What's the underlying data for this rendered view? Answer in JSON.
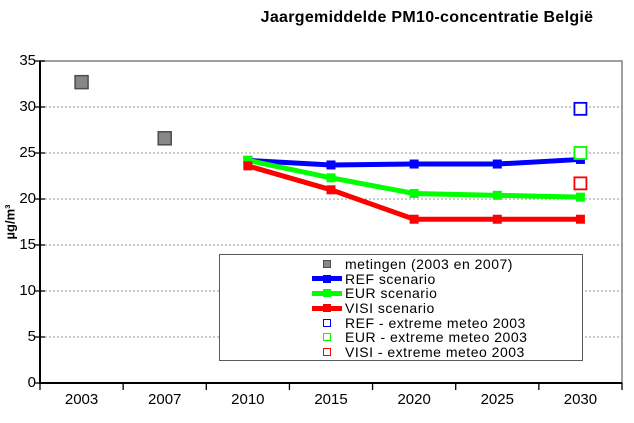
{
  "title": "Jaargemiddelde PM10-concentratie België",
  "chart_data": {
    "type": "line",
    "title": "Jaargemiddelde PM10-concentratie België",
    "xlabel": "",
    "ylabel": "µg/m³",
    "categories": [
      "2003",
      "2007",
      "2010",
      "2015",
      "2020",
      "2025",
      "2030"
    ],
    "ylim": [
      0,
      35
    ],
    "ytick_step": 5,
    "grid": "horizontal-dotted",
    "legend_position": "inside-bottom-center",
    "colors": {
      "ref": "#0000ff",
      "eur": "#00ff00",
      "visi": "#ff0000",
      "metingen_fill": "#878787",
      "metingen_border": "#4d4d4d",
      "gridline": "#999999",
      "plot_border": "#808080",
      "axis": "#000000"
    },
    "series": [
      {
        "name": "metingen (2003 en 2007)",
        "kind": "scatter",
        "marker": "filled-square",
        "color": "#878787",
        "marker_border": "#4d4d4d",
        "values": [
          32.7,
          26.6,
          null,
          null,
          null,
          null,
          null
        ]
      },
      {
        "name": "REF scenario",
        "kind": "line",
        "marker": "filled-square",
        "color": "#0000ff",
        "values": [
          null,
          null,
          24.2,
          23.7,
          23.8,
          23.8,
          24.3
        ]
      },
      {
        "name": "EUR scenario",
        "kind": "line",
        "marker": "filled-square",
        "color": "#00ff00",
        "values": [
          null,
          null,
          24.2,
          22.3,
          20.6,
          20.4,
          20.2
        ]
      },
      {
        "name": "VISI scenario",
        "kind": "line",
        "marker": "filled-square",
        "color": "#ff0000",
        "values": [
          null,
          null,
          23.6,
          21.0,
          17.8,
          17.8,
          17.8
        ]
      },
      {
        "name": "REF - extreme meteo 2003",
        "kind": "scatter",
        "marker": "open-square",
        "color": "#0000ff",
        "values": [
          null,
          null,
          null,
          null,
          null,
          null,
          29.8
        ]
      },
      {
        "name": "EUR - extreme meteo 2003",
        "kind": "scatter",
        "marker": "open-square",
        "color": "#00ff00",
        "values": [
          null,
          null,
          null,
          null,
          null,
          null,
          25.0
        ]
      },
      {
        "name": "VISI - extreme meteo 2003",
        "kind": "scatter",
        "marker": "open-square",
        "color": "#ff0000",
        "values": [
          null,
          null,
          null,
          null,
          null,
          null,
          21.7
        ]
      }
    ]
  }
}
